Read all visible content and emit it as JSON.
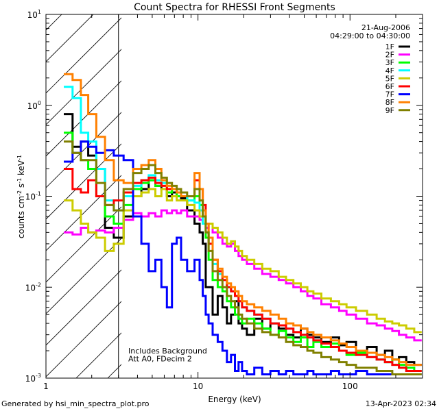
{
  "chart_data": {
    "type": "line",
    "title": "Count Spectra for RHESSI Front Segments",
    "xlabel": "Energy (keV)",
    "ylabel": {
      "base": "counts cm",
      "exp1": "-2",
      "mid1": " s",
      "exp2": "-1",
      "mid2": " keV",
      "exp3": "-1"
    },
    "xscale": "log",
    "yscale": "log",
    "xlim": [
      1.0,
      300.0
    ],
    "ylim": [
      0.001,
      10.0
    ],
    "x_tick_labels": [
      {
        "value": 1,
        "label": "1"
      },
      {
        "value": 10,
        "label": "10"
      },
      {
        "value": 100,
        "label": "100"
      }
    ],
    "y_tick_labels": [
      {
        "value": 0.001,
        "base": "10",
        "exp": "-3"
      },
      {
        "value": 0.01,
        "base": "10",
        "exp": "-2"
      },
      {
        "value": 0.1,
        "base": "10",
        "exp": "-1"
      },
      {
        "value": 1,
        "base": "10",
        "exp": "0"
      },
      {
        "value": 10,
        "base": "10",
        "exp": "1"
      }
    ],
    "date": "21-Aug-2006",
    "time_range": "04:29:00 to 04:30:00",
    "annotation_lines": [
      "Includes Background",
      "Att A0, FDecim 2"
    ],
    "excluded_region_keV": [
      1.0,
      3.0
    ],
    "series": [
      {
        "name": "1F",
        "color": "#000000",
        "x": [
          1.4,
          1.6,
          1.8,
          2.0,
          2.3,
          2.6,
          3.0,
          3.5,
          4.0,
          4.5,
          5.0,
          5.5,
          6.0,
          6.5,
          7.0,
          7.5,
          8.0,
          9.0,
          10.0,
          10.5,
          11.0,
          11.5,
          12.0,
          13.0,
          14.0,
          15.0,
          16.0,
          17.0,
          18.0,
          19.0,
          20.0,
          22.0,
          25.0,
          28.0,
          32.0,
          36.0,
          40.0,
          45.0,
          50.0,
          55.0,
          60.0,
          70.0,
          80.0,
          90.0,
          100.0,
          120.0,
          140.0,
          160.0,
          180.0,
          200.0,
          220.0,
          250.0,
          280.0
        ],
        "y": [
          0.8,
          0.35,
          0.4,
          0.28,
          0.2,
          0.045,
          0.035,
          0.06,
          0.1,
          0.12,
          0.15,
          0.13,
          0.12,
          0.1,
          0.11,
          0.1,
          0.095,
          0.07,
          0.05,
          0.04,
          0.03,
          0.01,
          0.01,
          0.005,
          0.008,
          0.006,
          0.004,
          0.005,
          0.007,
          0.004,
          0.0035,
          0.003,
          0.0045,
          0.0035,
          0.004,
          0.0035,
          0.003,
          0.0028,
          0.0035,
          0.003,
          0.0028,
          0.0025,
          0.0028,
          0.0023,
          0.0025,
          0.002,
          0.0022,
          0.0018,
          0.002,
          0.0016,
          0.0017,
          0.0015,
          0.0014
        ]
      },
      {
        "name": "2F",
        "color": "#ff00ff",
        "x": [
          1.4,
          1.6,
          1.8,
          2.0,
          2.3,
          2.6,
          3.0,
          3.5,
          4.0,
          4.5,
          5.0,
          5.5,
          6.0,
          6.5,
          7.0,
          7.5,
          8.0,
          9.0,
          10.0,
          10.5,
          11.0,
          11.5,
          12.0,
          13.0,
          14.0,
          15.0,
          16.0,
          17.0,
          18.0,
          19.0,
          20.0,
          22.0,
          25.0,
          28.0,
          32.0,
          36.0,
          40.0,
          45.0,
          50.0,
          55.0,
          60.0,
          70.0,
          80.0,
          90.0,
          100.0,
          120.0,
          140.0,
          160.0,
          180.0,
          200.0,
          220.0,
          250.0,
          280.0
        ],
        "y": [
          0.04,
          0.038,
          0.045,
          0.04,
          0.042,
          0.04,
          0.045,
          0.055,
          0.065,
          0.06,
          0.065,
          0.06,
          0.07,
          0.065,
          0.07,
          0.065,
          0.07,
          0.06,
          0.06,
          0.055,
          0.05,
          0.045,
          0.05,
          0.04,
          0.035,
          0.03,
          0.028,
          0.03,
          0.025,
          0.022,
          0.02,
          0.018,
          0.016,
          0.014,
          0.013,
          0.012,
          0.011,
          0.01,
          0.009,
          0.008,
          0.0075,
          0.0065,
          0.006,
          0.0055,
          0.005,
          0.0045,
          0.004,
          0.0038,
          0.0035,
          0.0033,
          0.003,
          0.0028,
          0.0026
        ]
      },
      {
        "name": "3F",
        "color": "#00ff00",
        "x": [
          1.4,
          1.6,
          1.8,
          2.0,
          2.3,
          2.6,
          3.0,
          3.5,
          4.0,
          4.5,
          5.0,
          5.5,
          6.0,
          6.5,
          7.0,
          7.5,
          8.0,
          9.0,
          10.0,
          10.5,
          11.0,
          11.5,
          12.0,
          13.0,
          14.0,
          15.0,
          16.0,
          17.0,
          18.0,
          19.0,
          20.0,
          22.0,
          25.0,
          28.0,
          32.0,
          36.0,
          40.0,
          45.0,
          50.0,
          55.0,
          60.0,
          70.0,
          80.0,
          90.0,
          100.0,
          120.0,
          140.0,
          160.0,
          180.0,
          200.0,
          220.0,
          250.0,
          280.0
        ],
        "y": [
          0.5,
          0.3,
          0.25,
          0.2,
          0.1,
          0.06,
          0.05,
          0.08,
          0.12,
          0.14,
          0.15,
          0.13,
          0.14,
          0.11,
          0.12,
          0.1,
          0.1,
          0.09,
          0.1,
          0.08,
          0.05,
          0.035,
          0.02,
          0.012,
          0.01,
          0.009,
          0.007,
          0.006,
          0.005,
          0.0045,
          0.004,
          0.0045,
          0.004,
          0.0035,
          0.003,
          0.0033,
          0.0028,
          0.0025,
          0.0028,
          0.0022,
          0.0025,
          0.0022,
          0.0024,
          0.002,
          0.0018,
          0.0019,
          0.0017,
          0.0016,
          0.0015,
          0.0016,
          0.0014,
          0.0013,
          0.0012
        ]
      },
      {
        "name": "4F",
        "color": "#00ffff",
        "x": [
          1.4,
          1.6,
          1.8,
          2.0,
          2.3,
          2.6,
          3.0,
          3.5,
          4.0,
          4.5,
          5.0,
          5.5,
          6.0,
          6.5,
          7.0,
          7.5,
          8.0,
          9.0,
          10.0,
          10.5,
          11.0,
          11.5,
          12.0,
          13.0,
          14.0,
          15.0,
          16.0,
          17.0,
          18.0,
          19.0,
          20.0,
          22.0,
          25.0,
          28.0,
          32.0,
          36.0,
          40.0,
          45.0,
          50.0,
          55.0,
          60.0,
          70.0,
          80.0,
          90.0,
          100.0,
          120.0,
          140.0,
          160.0,
          180.0,
          200.0,
          220.0,
          250.0,
          280.0
        ],
        "y": [
          1.6,
          1.2,
          0.5,
          0.4,
          0.2,
          0.09,
          0.07,
          0.1,
          0.13,
          0.15,
          0.17,
          0.15,
          0.14,
          0.12,
          0.12,
          0.11,
          0.1,
          0.09,
          0.085,
          0.07,
          0.05,
          0.04,
          0.03,
          0.018,
          0.014,
          0.012,
          0.01,
          0.009,
          0.008,
          0.007,
          0.006,
          0.0055,
          0.005,
          0.0045,
          0.004,
          0.0038,
          0.0035,
          0.0032,
          0.003,
          0.0028,
          0.0026,
          0.0024,
          0.0022,
          0.002,
          0.0019,
          0.0018,
          0.0017,
          0.0016,
          0.0015,
          0.0014,
          0.0013,
          0.0012,
          0.0012
        ]
      },
      {
        "name": "5F",
        "color": "#cccc00",
        "x": [
          1.4,
          1.6,
          1.8,
          2.0,
          2.3,
          2.6,
          3.0,
          3.5,
          4.0,
          4.5,
          5.0,
          5.5,
          6.0,
          6.5,
          7.0,
          7.5,
          8.0,
          9.0,
          10.0,
          10.5,
          11.0,
          11.5,
          12.0,
          13.0,
          14.0,
          15.0,
          16.0,
          17.0,
          18.0,
          19.0,
          20.0,
          22.0,
          25.0,
          28.0,
          32.0,
          36.0,
          40.0,
          45.0,
          50.0,
          55.0,
          60.0,
          70.0,
          80.0,
          90.0,
          100.0,
          120.0,
          140.0,
          160.0,
          180.0,
          200.0,
          220.0,
          250.0,
          280.0
        ],
        "y": [
          0.09,
          0.07,
          0.05,
          0.04,
          0.035,
          0.025,
          0.03,
          0.07,
          0.1,
          0.11,
          0.12,
          0.1,
          0.12,
          0.09,
          0.1,
          0.09,
          0.09,
          0.08,
          0.07,
          0.06,
          0.06,
          0.05,
          0.05,
          0.045,
          0.04,
          0.035,
          0.03,
          0.032,
          0.028,
          0.025,
          0.022,
          0.02,
          0.018,
          0.016,
          0.015,
          0.013,
          0.012,
          0.011,
          0.01,
          0.009,
          0.0085,
          0.0075,
          0.007,
          0.0065,
          0.006,
          0.0055,
          0.005,
          0.0045,
          0.0042,
          0.004,
          0.0038,
          0.0035,
          0.0032
        ]
      },
      {
        "name": "6F",
        "color": "#ff0000",
        "x": [
          1.4,
          1.6,
          1.8,
          2.0,
          2.3,
          2.6,
          3.0,
          3.5,
          4.0,
          4.5,
          5.0,
          5.5,
          6.0,
          6.5,
          7.0,
          7.5,
          8.0,
          9.0,
          10.0,
          10.5,
          11.0,
          11.5,
          12.0,
          13.0,
          14.0,
          15.0,
          16.0,
          17.0,
          18.0,
          19.0,
          20.0,
          22.0,
          25.0,
          28.0,
          32.0,
          36.0,
          40.0,
          45.0,
          50.0,
          55.0,
          60.0,
          70.0,
          80.0,
          90.0,
          100.0,
          120.0,
          140.0,
          160.0,
          180.0,
          200.0,
          220.0,
          250.0,
          280.0
        ],
        "y": [
          0.2,
          0.12,
          0.11,
          0.15,
          0.1,
          0.08,
          0.09,
          0.11,
          0.14,
          0.15,
          0.16,
          0.14,
          0.13,
          0.12,
          0.12,
          0.11,
          0.1,
          0.1,
          0.15,
          0.12,
          0.08,
          0.05,
          0.03,
          0.02,
          0.015,
          0.012,
          0.01,
          0.009,
          0.008,
          0.007,
          0.006,
          0.0055,
          0.005,
          0.0045,
          0.004,
          0.0038,
          0.0035,
          0.0032,
          0.003,
          0.0028,
          0.0026,
          0.0024,
          0.0022,
          0.002,
          0.0019,
          0.0018,
          0.0017,
          0.0016,
          0.0015,
          0.0014,
          0.0013,
          0.0012,
          0.0012
        ]
      },
      {
        "name": "7F",
        "color": "#0000ff",
        "x": [
          1.4,
          1.6,
          1.8,
          2.0,
          2.3,
          2.6,
          3.0,
          3.5,
          4.0,
          4.5,
          5.0,
          5.5,
          6.0,
          6.5,
          7.0,
          7.5,
          8.0,
          9.0,
          10.0,
          10.5,
          11.0,
          11.5,
          12.0,
          13.0,
          14.0,
          15.0,
          16.0,
          17.0,
          18.0,
          19.0,
          20.0,
          22.0,
          25.0,
          28.0,
          32.0,
          36.0,
          40.0,
          45.0,
          50.0,
          55.0,
          60.0,
          70.0,
          80.0,
          90.0,
          100.0,
          120.0,
          140.0,
          160.0,
          180.0,
          200.0,
          220.0,
          250.0,
          280.0
        ],
        "y": [
          0.24,
          0.3,
          0.4,
          0.35,
          0.3,
          0.32,
          0.28,
          0.25,
          0.06,
          0.03,
          0.015,
          0.02,
          0.01,
          0.006,
          0.03,
          0.035,
          0.02,
          0.015,
          0.02,
          0.012,
          0.008,
          0.005,
          0.004,
          0.003,
          0.0025,
          0.002,
          0.0015,
          0.0018,
          0.0012,
          0.0015,
          0.0012,
          0.0011,
          0.0013,
          0.0011,
          0.0012,
          0.0011,
          0.0012,
          0.0011,
          0.0011,
          0.0012,
          0.0011,
          0.0011,
          0.0012,
          0.0011,
          0.0011,
          0.0012,
          0.0011,
          0.0011,
          0.0011,
          0.0011,
          0.0011,
          0.0011,
          0.0011
        ]
      },
      {
        "name": "8F",
        "color": "#ff8000",
        "x": [
          1.4,
          1.6,
          1.8,
          2.0,
          2.3,
          2.6,
          3.0,
          3.5,
          4.0,
          4.5,
          5.0,
          5.5,
          6.0,
          6.5,
          7.0,
          7.5,
          8.0,
          9.0,
          10.0,
          10.5,
          11.0,
          11.5,
          12.0,
          13.0,
          14.0,
          15.0,
          16.0,
          17.0,
          18.0,
          19.0,
          20.0,
          22.0,
          25.0,
          28.0,
          32.0,
          36.0,
          40.0,
          45.0,
          50.0,
          55.0,
          60.0,
          70.0,
          80.0,
          90.0,
          100.0,
          120.0,
          140.0,
          160.0,
          180.0,
          200.0,
          220.0,
          250.0,
          280.0
        ],
        "y": [
          2.2,
          1.9,
          1.3,
          0.8,
          0.45,
          0.25,
          0.15,
          0.14,
          0.2,
          0.22,
          0.25,
          0.2,
          0.15,
          0.13,
          0.12,
          0.11,
          0.1,
          0.1,
          0.18,
          0.12,
          0.07,
          0.05,
          0.035,
          0.02,
          0.016,
          0.013,
          0.011,
          0.01,
          0.009,
          0.008,
          0.007,
          0.0065,
          0.006,
          0.0055,
          0.005,
          0.0045,
          0.004,
          0.0038,
          0.0035,
          0.0032,
          0.003,
          0.0028,
          0.0026,
          0.0024,
          0.0022,
          0.002,
          0.0019,
          0.0018,
          0.0017,
          0.0016,
          0.0015,
          0.0014,
          0.0014
        ]
      },
      {
        "name": "9F",
        "color": "#808000",
        "x": [
          1.4,
          1.6,
          1.8,
          2.0,
          2.3,
          2.6,
          3.0,
          3.5,
          4.0,
          4.5,
          5.0,
          5.5,
          6.0,
          6.5,
          7.0,
          7.5,
          8.0,
          9.0,
          10.0,
          10.5,
          11.0,
          11.5,
          12.0,
          13.0,
          14.0,
          15.0,
          16.0,
          17.0,
          18.0,
          19.0,
          20.0,
          22.0,
          25.0,
          28.0,
          32.0,
          36.0,
          40.0,
          45.0,
          50.0,
          55.0,
          60.0,
          70.0,
          80.0,
          90.0,
          100.0,
          120.0,
          140.0,
          160.0,
          180.0,
          200.0,
          220.0,
          250.0,
          280.0
        ],
        "y": [
          0.4,
          0.3,
          0.25,
          0.25,
          0.14,
          0.08,
          0.07,
          0.12,
          0.18,
          0.2,
          0.22,
          0.18,
          0.16,
          0.14,
          0.13,
          0.12,
          0.11,
          0.1,
          0.12,
          0.09,
          0.06,
          0.04,
          0.025,
          0.015,
          0.012,
          0.01,
          0.008,
          0.007,
          0.006,
          0.005,
          0.0045,
          0.004,
          0.0035,
          0.0032,
          0.003,
          0.0028,
          0.0025,
          0.0023,
          0.0022,
          0.002,
          0.0019,
          0.0017,
          0.0016,
          0.0015,
          0.0014,
          0.0013,
          0.0013,
          0.0012,
          0.0012,
          0.0011,
          0.0011,
          0.0011,
          0.0011
        ]
      }
    ]
  },
  "footer": {
    "generated_by": "Generated by hsi_min_spectra_plot.pro",
    "timestamp": "13-Apr-2023 02:34"
  }
}
